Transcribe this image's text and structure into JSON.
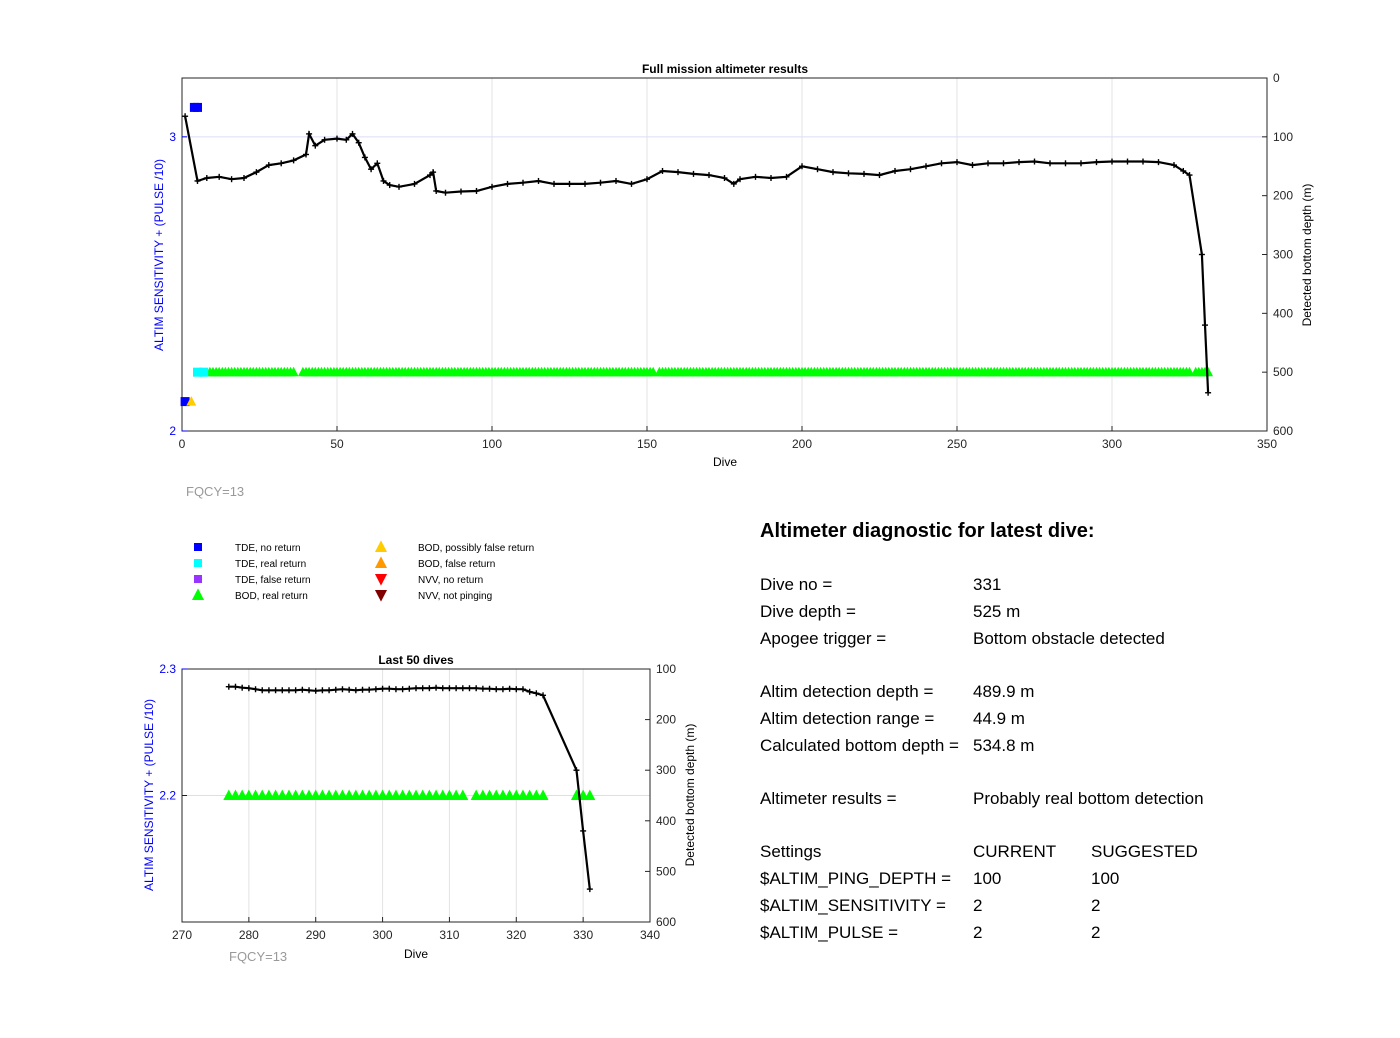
{
  "top_chart": {
    "title": "Full mission altimeter results",
    "xlabel": "Dive",
    "ylabel_left": "ALTIM SENSITIVITY + (PULSE /10)",
    "ylabel_right": "Detected bottom depth (m)",
    "note": "FQCY=13"
  },
  "bottom_chart": {
    "title": "Last 50 dives",
    "xlabel": "Dive",
    "ylabel_left": "ALTIM SENSITIVITY + (PULSE /10)",
    "ylabel_right": "Detected bottom depth (m)",
    "note": "FQCY=13"
  },
  "legend": [
    {
      "label": "TDE, no return",
      "symbol": "square",
      "color": "#0000ff"
    },
    {
      "label": "TDE, real return",
      "symbol": "square",
      "color": "#00ffff"
    },
    {
      "label": "TDE, false return",
      "symbol": "square",
      "color": "#9933ff"
    },
    {
      "label": "BOD, real return",
      "symbol": "triangle-up",
      "color": "#00ff00"
    },
    {
      "label": "BOD, possibly false return",
      "symbol": "triangle-up",
      "color": "#ffcc00"
    },
    {
      "label": "BOD, false return",
      "symbol": "triangle-up",
      "color": "#ff9900"
    },
    {
      "label": "NVV, no return",
      "symbol": "triangle-down",
      "color": "#ff0000"
    },
    {
      "label": "NVV, not pinging",
      "symbol": "triangle-down",
      "color": "#800000"
    }
  ],
  "diagnostic": {
    "title": "Altimeter diagnostic for latest dive:",
    "dive_no_label": "Dive no =",
    "dive_no": "331",
    "dive_depth_label": "Dive depth =",
    "dive_depth": "525 m",
    "apogee_label": "Apogee trigger =",
    "apogee": "Bottom obstacle detected",
    "altim_det_depth_label": "Altim detection depth =",
    "altim_det_depth": "489.9 m",
    "altim_det_range_label": "Altim detection range =",
    "altim_det_range": "44.9 m",
    "calc_bottom_label": "Calculated bottom depth =",
    "calc_bottom": "534.8 m",
    "results_label": "Altimeter results =",
    "results": "Probably real bottom detection",
    "settings_label": "Settings",
    "current_label": "CURRENT",
    "suggested_label": "SUGGESTED",
    "settings": [
      {
        "name": "$ALTIM_PING_DEPTH =",
        "current": "100",
        "suggested": "100"
      },
      {
        "name": "$ALTIM_SENSITIVITY =",
        "current": "2",
        "suggested": "2"
      },
      {
        "name": "$ALTIM_PULSE =",
        "current": "2",
        "suggested": "2"
      }
    ]
  },
  "chart_data": [
    {
      "type": "scatter",
      "title": "Full mission altimeter results",
      "xlabel": "Dive",
      "ylabel": "ALTIM SENSITIVITY + (PULSE /10)",
      "ylabel_right": "Detected bottom depth (m)",
      "xlim": [
        0,
        350
      ],
      "ylim_left": [
        2,
        3.2
      ],
      "ylim_right": [
        600,
        0
      ],
      "right_axis_reversed": true,
      "x_ticks": [
        0,
        50,
        100,
        150,
        200,
        250,
        300,
        350
      ],
      "y_ticks_left": [
        2,
        3
      ],
      "y_ticks_right": [
        0,
        100,
        200,
        300,
        400,
        500,
        600
      ],
      "grid": true,
      "bottom_depth_series": {
        "name": "Detected bottom depth",
        "color": "#000000",
        "x": [
          1,
          5,
          8,
          12,
          16,
          20,
          24,
          28,
          32,
          36,
          40,
          41,
          43,
          46,
          50,
          53,
          55,
          57,
          59,
          61,
          63,
          65,
          67,
          70,
          75,
          80,
          81,
          82,
          85,
          90,
          95,
          100,
          105,
          110,
          115,
          120,
          125,
          130,
          135,
          140,
          145,
          150,
          155,
          160,
          165,
          170,
          175,
          178,
          180,
          185,
          190,
          195,
          200,
          205,
          210,
          215,
          220,
          225,
          230,
          235,
          240,
          245,
          250,
          255,
          260,
          265,
          270,
          275,
          280,
          285,
          290,
          295,
          300,
          305,
          310,
          315,
          320,
          323,
          325,
          329,
          330,
          331
        ],
        "y": [
          65,
          175,
          170,
          168,
          172,
          170,
          160,
          148,
          145,
          140,
          130,
          95,
          115,
          105,
          103,
          105,
          95,
          110,
          135,
          155,
          145,
          175,
          182,
          185,
          180,
          165,
          160,
          192,
          195,
          193,
          192,
          185,
          180,
          178,
          175,
          180,
          180,
          180,
          178,
          175,
          180,
          172,
          158,
          160,
          163,
          165,
          170,
          180,
          172,
          168,
          170,
          168,
          150,
          155,
          160,
          162,
          163,
          165,
          158,
          155,
          150,
          145,
          143,
          148,
          145,
          145,
          143,
          142,
          145,
          145,
          145,
          143,
          142,
          142,
          142,
          143,
          148,
          158,
          165,
          300,
          420,
          535
        ]
      },
      "markers": [
        {
          "name": "BOD, real return",
          "symbol": "triangle-up",
          "color": "#00ff00",
          "y": 2.2,
          "x_ranges": [
            [
              9,
              36
            ],
            [
              39,
              152
            ],
            [
              154,
              325
            ],
            [
              327,
              331
            ]
          ]
        },
        {
          "name": "TDE, real return",
          "symbol": "square",
          "color": "#00ffff",
          "y": 2.2,
          "x": [
            5,
            7
          ]
        },
        {
          "name": "TDE, no return",
          "symbol": "square",
          "color": "#0000ff",
          "points": [
            [
              1,
              2.1
            ],
            [
              4,
              3.1
            ],
            [
              5,
              3.1
            ]
          ]
        },
        {
          "name": "BOD, possibly false return",
          "symbol": "triangle-up",
          "color": "#ffcc00",
          "points": [
            [
              3,
              2.1
            ]
          ]
        }
      ]
    },
    {
      "type": "scatter",
      "title": "Last 50 dives",
      "xlabel": "Dive",
      "ylabel": "ALTIM SENSITIVITY + (PULSE /10)",
      "ylabel_right": "Detected bottom depth (m)",
      "xlim": [
        270,
        340
      ],
      "ylim_left": [
        2.1,
        2.3
      ],
      "ylim_right": [
        600,
        100
      ],
      "right_axis_reversed": true,
      "x_ticks": [
        270,
        280,
        290,
        300,
        310,
        320,
        330,
        340
      ],
      "y_ticks_left": [
        2.2,
        2.3
      ],
      "y_ticks_right": [
        100,
        200,
        300,
        400,
        500,
        600
      ],
      "grid": true,
      "bottom_depth_series": {
        "name": "Detected bottom depth",
        "color": "#000000",
        "x": [
          277,
          278,
          279,
          280,
          281,
          282,
          283,
          284,
          285,
          286,
          287,
          288,
          289,
          290,
          291,
          292,
          293,
          294,
          295,
          296,
          297,
          298,
          299,
          300,
          301,
          302,
          303,
          304,
          305,
          306,
          307,
          308,
          309,
          310,
          311,
          312,
          313,
          314,
          315,
          316,
          317,
          318,
          319,
          320,
          321,
          322,
          323,
          324,
          329,
          330,
          331
        ],
        "y": [
          135,
          135,
          137,
          138,
          140,
          142,
          142,
          142,
          142,
          142,
          142,
          141,
          142,
          143,
          142,
          142,
          141,
          140,
          141,
          142,
          141,
          141,
          140,
          139,
          139,
          140,
          140,
          139,
          138,
          138,
          138,
          137,
          138,
          138,
          138,
          138,
          138,
          138,
          139,
          139,
          140,
          140,
          139,
          140,
          140,
          145,
          148,
          152,
          300,
          420,
          535
        ]
      },
      "markers": [
        {
          "name": "BOD, real return",
          "symbol": "triangle-up",
          "color": "#00ff00",
          "y": 2.2,
          "x": [
            277,
            278,
            279,
            280,
            281,
            282,
            283,
            284,
            285,
            286,
            287,
            288,
            289,
            290,
            291,
            292,
            293,
            294,
            295,
            296,
            297,
            298,
            299,
            300,
            301,
            302,
            303,
            304,
            305,
            306,
            307,
            308,
            309,
            310,
            311,
            312,
            314,
            315,
            316,
            317,
            318,
            319,
            320,
            321,
            322,
            323,
            324,
            329,
            330,
            331
          ]
        }
      ]
    }
  ]
}
